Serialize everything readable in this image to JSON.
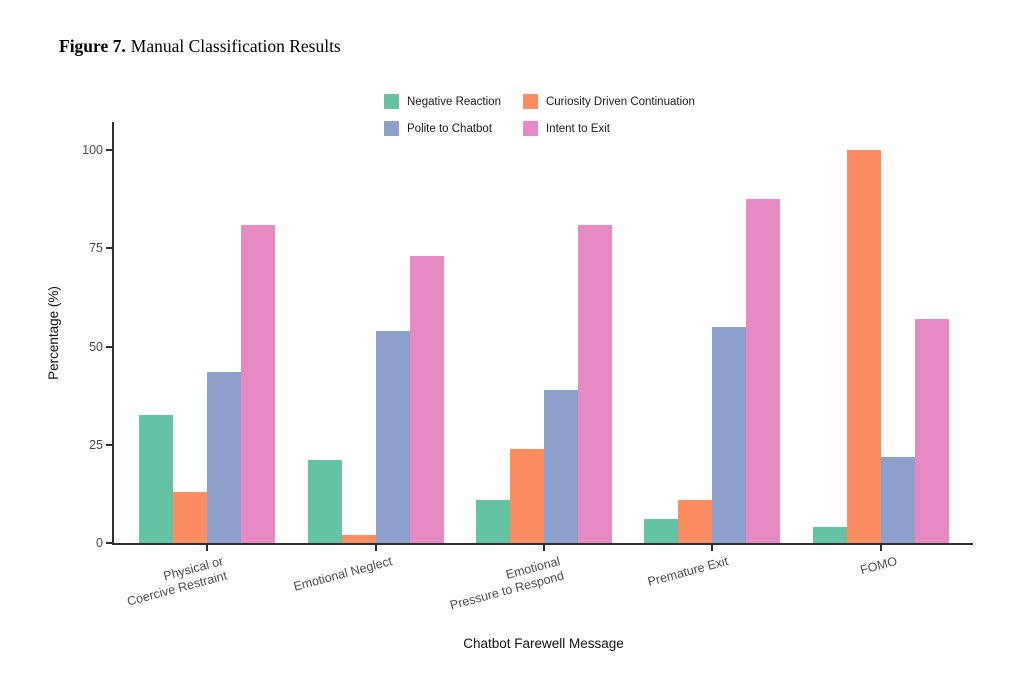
{
  "figure": {
    "label": "Figure 7.",
    "title": "Manual Classification Results"
  },
  "chart_data": {
    "type": "bar",
    "title": "Manual Classification Results",
    "categories": [
      "Physical or\nCoercive Restraint",
      "Emotional Neglect",
      "Emotional\nPressure to Respond",
      "Premature Exit",
      "FOMO"
    ],
    "series": [
      {
        "name": "Negative Reaction",
        "color": "#66C2A5",
        "values": [
          32.5,
          21,
          11,
          6,
          4
        ]
      },
      {
        "name": "Curiosity Driven Continuation",
        "color": "#FC8D62",
        "values": [
          13,
          2,
          24,
          11,
          100
        ]
      },
      {
        "name": "Polite to Chatbot",
        "color": "#8DA0CB",
        "values": [
          43.5,
          54,
          39,
          55,
          22
        ]
      },
      {
        "name": "Intent to Exit",
        "color": "#E78AC3",
        "values": [
          81,
          73,
          81,
          87.5,
          57
        ]
      }
    ],
    "xlabel": "Chatbot Farewell Message",
    "ylabel": "Percentage (%)",
    "ylim": [
      0,
      100
    ],
    "yticks": [
      0,
      25,
      50,
      75,
      100
    ],
    "grid": false,
    "legend_position": "top-center",
    "legend_rows": 2,
    "axis_color": "#2e2e2e",
    "tick_label_color": "#4a4a4a"
  }
}
